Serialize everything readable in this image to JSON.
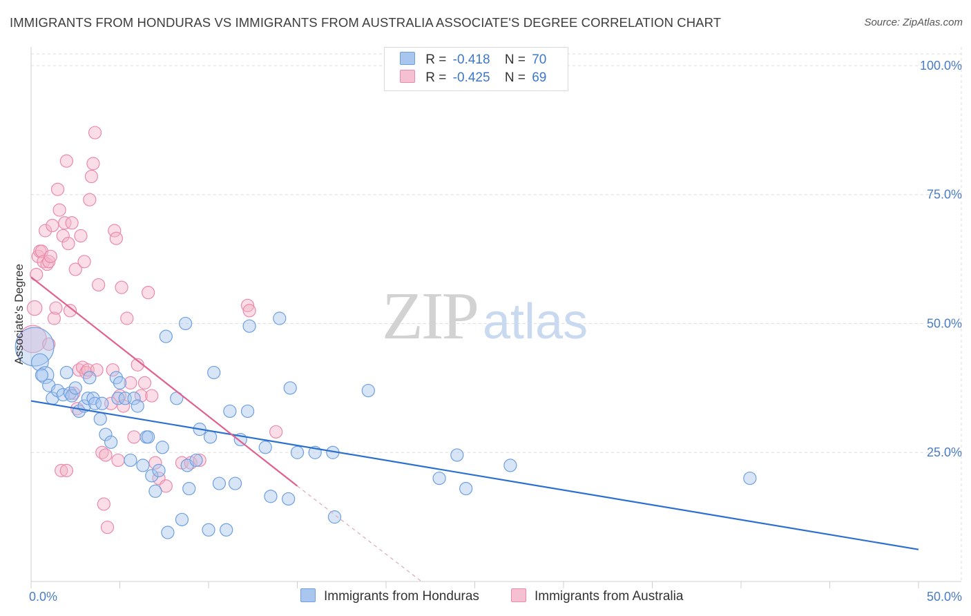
{
  "title": "IMMIGRANTS FROM HONDURAS VS IMMIGRANTS FROM AUSTRALIA ASSOCIATE'S DEGREE CORRELATION CHART",
  "source": "Source: ZipAtlas.com",
  "watermark": {
    "zip": "ZIP",
    "atlas": "atlas"
  },
  "legend": {
    "rows": [
      {
        "r_label": "R =",
        "r_value": "-0.418",
        "n_label": "N =",
        "n_value": "70"
      },
      {
        "r_label": "R =",
        "r_value": "-0.425",
        "n_label": "N =",
        "n_value": "69"
      }
    ]
  },
  "bottom_legend": {
    "honduras": "Immigrants from Honduras",
    "australia": "Immigrants from Australia"
  },
  "colors": {
    "blue_fill": "#a9c6ee",
    "blue_stroke": "#6d9fe0",
    "blue_line": "#2b6fcf",
    "pink_fill": "#f5b3c8",
    "pink_stroke": "#ea8aaa",
    "pink_line": "#e0608e",
    "axis_text": "#4a7cc5"
  },
  "chart_data": {
    "type": "scatter",
    "title": "IMMIGRANTS FROM HONDURAS VS IMMIGRANTS FROM AUSTRALIA ASSOCIATE'S DEGREE CORRELATION CHART",
    "xlabel": "",
    "ylabel": "Associate's Degree",
    "xlim": [
      0,
      50
    ],
    "ylim": [
      0,
      102
    ],
    "x_tick_labels": [
      {
        "value": 0,
        "label": "0.0%"
      },
      {
        "value": 50,
        "label": "50.0%"
      }
    ],
    "y_tick_labels": [
      {
        "value": 25,
        "label": "25.0%"
      },
      {
        "value": 50,
        "label": "50.0%"
      },
      {
        "value": 75,
        "label": "75.0%"
      },
      {
        "value": 100,
        "label": "100.0%"
      }
    ],
    "grid": true,
    "legend_position": "top-center",
    "series": [
      {
        "name": "Immigrants from Honduras",
        "color": "#6d9fe0",
        "points": [
          [
            0.2,
            45.5
          ],
          [
            0.5,
            42.5
          ],
          [
            0.8,
            40.0
          ],
          [
            1.0,
            38.0
          ],
          [
            1.2,
            35.5
          ],
          [
            1.5,
            37.0
          ],
          [
            1.8,
            36.2
          ],
          [
            2.0,
            40.5
          ],
          [
            2.2,
            36.5
          ],
          [
            2.3,
            36.0
          ],
          [
            2.5,
            37.5
          ],
          [
            2.7,
            33.0
          ],
          [
            3.0,
            34.0
          ],
          [
            3.2,
            35.5
          ],
          [
            3.3,
            39.5
          ],
          [
            3.5,
            35.5
          ],
          [
            3.6,
            34.5
          ],
          [
            3.9,
            31.5
          ],
          [
            4.0,
            34.5
          ],
          [
            4.2,
            28.5
          ],
          [
            4.5,
            27.0
          ],
          [
            4.8,
            39.5
          ],
          [
            4.9,
            35.5
          ],
          [
            5.0,
            38.5
          ],
          [
            5.3,
            35.5
          ],
          [
            5.6,
            23.5
          ],
          [
            5.8,
            35.5
          ],
          [
            6.0,
            34.0
          ],
          [
            6.3,
            22.5
          ],
          [
            6.5,
            28.0
          ],
          [
            6.6,
            28.0
          ],
          [
            6.8,
            20.5
          ],
          [
            7.0,
            17.5
          ],
          [
            7.2,
            21.5
          ],
          [
            7.4,
            26.0
          ],
          [
            7.6,
            47.5
          ],
          [
            7.7,
            9.5
          ],
          [
            8.2,
            35.5
          ],
          [
            8.5,
            12.0
          ],
          [
            8.7,
            50.0
          ],
          [
            8.8,
            22.5
          ],
          [
            8.9,
            18.0
          ],
          [
            9.3,
            23.5
          ],
          [
            9.5,
            29.5
          ],
          [
            10.0,
            10.0
          ],
          [
            10.1,
            28.0
          ],
          [
            10.3,
            40.5
          ],
          [
            10.6,
            19.0
          ],
          [
            11.0,
            10.0
          ],
          [
            11.2,
            33.0
          ],
          [
            11.5,
            19.0
          ],
          [
            11.8,
            27.5
          ],
          [
            12.2,
            33.0
          ],
          [
            12.3,
            49.5
          ],
          [
            13.2,
            26.0
          ],
          [
            13.5,
            16.5
          ],
          [
            14.0,
            51.0
          ],
          [
            14.5,
            16.0
          ],
          [
            14.6,
            37.5
          ],
          [
            15.0,
            25.0
          ],
          [
            16.0,
            25.0
          ],
          [
            17.0,
            25.0
          ],
          [
            17.1,
            12.5
          ],
          [
            19.0,
            37.0
          ],
          [
            23.0,
            20.0
          ],
          [
            24.0,
            24.5
          ],
          [
            24.5,
            18.0
          ],
          [
            27.0,
            22.5
          ],
          [
            40.5,
            20.0
          ],
          [
            0.6,
            40.0
          ]
        ],
        "sizes": [
          34,
          15,
          15,
          11,
          11,
          11,
          11,
          11,
          11,
          11,
          11,
          11,
          11,
          11,
          11,
          11,
          11,
          11,
          11,
          11,
          11,
          11,
          11,
          11,
          11,
          11,
          11,
          11,
          11,
          11,
          11,
          11,
          11,
          11,
          11,
          11,
          11,
          11,
          11,
          11,
          11,
          11,
          11,
          11,
          11,
          11,
          11,
          11,
          11,
          11,
          11,
          11,
          11,
          11,
          11,
          11,
          11,
          11,
          11,
          11,
          11,
          11,
          11,
          11,
          11,
          11,
          11,
          11,
          11,
          11
        ],
        "trend": {
          "x": [
            0,
            50
          ],
          "y": [
            35.0,
            6.2
          ]
        }
      },
      {
        "name": "Immigrants from Australia",
        "color": "#ea8aaa",
        "points": [
          [
            0.1,
            47.0
          ],
          [
            0.2,
            53.0
          ],
          [
            0.3,
            59.5
          ],
          [
            0.4,
            63.0
          ],
          [
            0.5,
            64.0
          ],
          [
            0.6,
            64.0
          ],
          [
            0.7,
            62.0
          ],
          [
            0.8,
            68.0
          ],
          [
            0.9,
            61.5
          ],
          [
            1.0,
            62.0
          ],
          [
            1.1,
            63.0
          ],
          [
            1.2,
            69.0
          ],
          [
            1.3,
            51.0
          ],
          [
            1.4,
            53.0
          ],
          [
            1.5,
            76.0
          ],
          [
            1.6,
            72.0
          ],
          [
            1.8,
            67.0
          ],
          [
            1.9,
            69.5
          ],
          [
            2.0,
            81.5
          ],
          [
            2.1,
            65.5
          ],
          [
            2.2,
            52.5
          ],
          [
            2.3,
            69.5
          ],
          [
            2.4,
            36.5
          ],
          [
            2.5,
            60.5
          ],
          [
            2.6,
            33.5
          ],
          [
            2.7,
            41.0
          ],
          [
            2.8,
            67.0
          ],
          [
            2.9,
            41.5
          ],
          [
            3.0,
            62.0
          ],
          [
            3.1,
            40.5
          ],
          [
            3.2,
            41.0
          ],
          [
            3.3,
            74.0
          ],
          [
            3.4,
            78.5
          ],
          [
            3.5,
            81.0
          ],
          [
            3.6,
            87.0
          ],
          [
            3.7,
            41.0
          ],
          [
            3.8,
            57.5
          ],
          [
            4.0,
            25.0
          ],
          [
            4.1,
            15.0
          ],
          [
            4.2,
            24.5
          ],
          [
            4.3,
            10.5
          ],
          [
            4.5,
            34.5
          ],
          [
            4.6,
            41.0
          ],
          [
            4.7,
            68.0
          ],
          [
            4.8,
            66.5
          ],
          [
            4.9,
            23.5
          ],
          [
            5.0,
            36.0
          ],
          [
            5.1,
            57.0
          ],
          [
            5.2,
            34.0
          ],
          [
            5.4,
            51.0
          ],
          [
            5.6,
            38.5
          ],
          [
            5.8,
            28.0
          ],
          [
            6.0,
            42.0
          ],
          [
            6.2,
            36.0
          ],
          [
            6.4,
            38.5
          ],
          [
            6.6,
            56.0
          ],
          [
            6.8,
            36.0
          ],
          [
            7.0,
            23.0
          ],
          [
            7.2,
            20.0
          ],
          [
            7.6,
            18.5
          ],
          [
            8.5,
            23.0
          ],
          [
            9.0,
            23.0
          ],
          [
            9.5,
            23.5
          ],
          [
            12.2,
            53.5
          ],
          [
            12.3,
            52.5
          ],
          [
            13.8,
            29.0
          ],
          [
            1.7,
            21.5
          ],
          [
            2.0,
            21.5
          ],
          [
            1.0,
            46.0
          ]
        ],
        "sizes": [
          24,
          13,
          11,
          11,
          11,
          11,
          11,
          11,
          11,
          11,
          11,
          11,
          11,
          11,
          11,
          11,
          11,
          11,
          11,
          11,
          11,
          11,
          11,
          11,
          11,
          11,
          11,
          11,
          11,
          11,
          11,
          11,
          11,
          11,
          11,
          11,
          11,
          11,
          11,
          11,
          11,
          11,
          11,
          11,
          11,
          11,
          11,
          11,
          11,
          11,
          11,
          11,
          11,
          11,
          11,
          11,
          11,
          11,
          11,
          11,
          11,
          11,
          11,
          11,
          11,
          11,
          11,
          11,
          11
        ],
        "trend": {
          "x": [
            0,
            15
          ],
          "y": [
            59.0,
            18.5
          ]
        },
        "trend_extension": {
          "x": [
            15,
            22
          ],
          "y": [
            18.5,
            0.0
          ]
        }
      }
    ]
  }
}
